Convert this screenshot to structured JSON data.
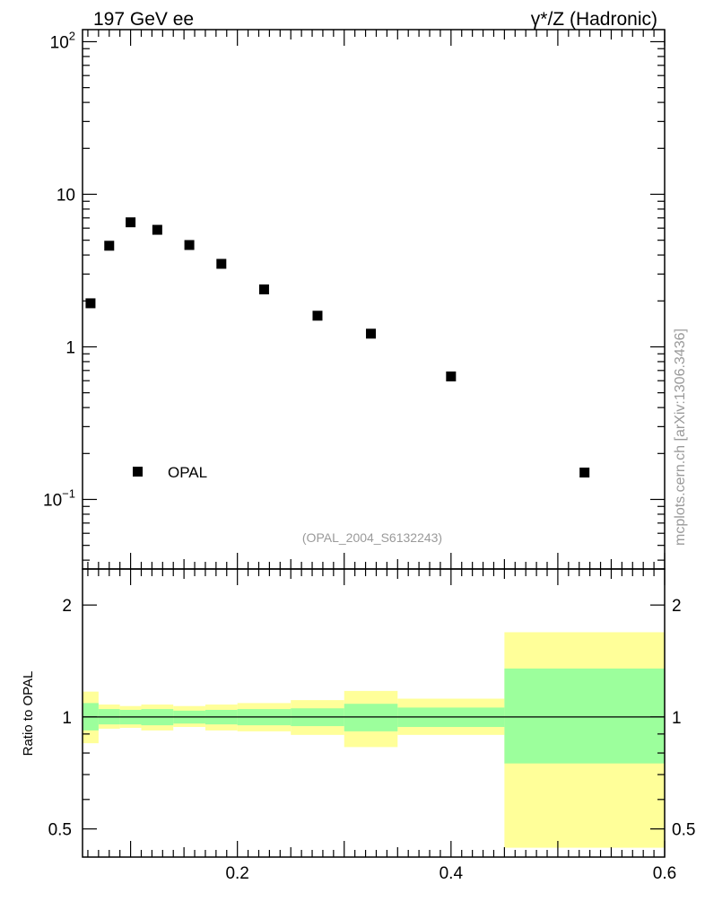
{
  "header": {
    "left": "197 GeV ee",
    "right_prefix": "γ*/Z",
    "right_suffix": " (Hadronic)"
  },
  "side_label": "mcplots.cern.ch [arXiv:1306.3436]",
  "analysis_label": "(OPAL_2004_S6132243)",
  "chart_data": [
    {
      "type": "scatter",
      "yscale": "log",
      "ylim": [
        0.035,
        120
      ],
      "xlim": [
        0.055,
        0.6
      ],
      "y_tick_labels": [
        {
          "value": 0.1,
          "base": "10",
          "exp": "−1"
        },
        {
          "value": 1,
          "text": "1"
        },
        {
          "value": 10,
          "text": "10"
        },
        {
          "value": 100,
          "base": "10",
          "exp": "2"
        }
      ],
      "legend": {
        "position": "bottom-left",
        "entry": "OPAL"
      },
      "series": [
        {
          "name": "OPAL",
          "marker": "square",
          "color": "#000000",
          "x": [
            0.0625,
            0.08,
            0.1,
            0.125,
            0.155,
            0.185,
            0.225,
            0.275,
            0.325,
            0.4,
            0.525
          ],
          "y": [
            1.93,
            4.6,
            6.55,
            5.85,
            4.65,
            3.5,
            2.38,
            1.6,
            1.22,
            0.64,
            0.15
          ]
        }
      ]
    },
    {
      "type": "area",
      "ylabel": "Ratio to OPAL",
      "ylim": [
        0.42,
        2.5
      ],
      "xlim": [
        0.055,
        0.6
      ],
      "x_tick_labels": [
        "0.2",
        "0.4",
        "0.6"
      ],
      "y_tick_labels": [
        "0.5",
        "1",
        "2"
      ],
      "reference_line": 1,
      "bins": [
        {
          "xlo": 0.055,
          "xhi": 0.07,
          "inner": [
            0.92,
            1.09
          ],
          "outer": [
            0.85,
            1.17
          ]
        },
        {
          "xlo": 0.07,
          "xhi": 0.09,
          "inner": [
            0.955,
            1.05
          ],
          "outer": [
            0.93,
            1.08
          ]
        },
        {
          "xlo": 0.09,
          "xhi": 0.11,
          "inner": [
            0.955,
            1.045
          ],
          "outer": [
            0.935,
            1.07
          ]
        },
        {
          "xlo": 0.11,
          "xhi": 0.14,
          "inner": [
            0.95,
            1.05
          ],
          "outer": [
            0.92,
            1.08
          ]
        },
        {
          "xlo": 0.14,
          "xhi": 0.17,
          "inner": [
            0.96,
            1.04
          ],
          "outer": [
            0.94,
            1.07
          ]
        },
        {
          "xlo": 0.17,
          "xhi": 0.2,
          "inner": [
            0.955,
            1.045
          ],
          "outer": [
            0.92,
            1.08
          ]
        },
        {
          "xlo": 0.2,
          "xhi": 0.25,
          "inner": [
            0.95,
            1.05
          ],
          "outer": [
            0.915,
            1.09
          ]
        },
        {
          "xlo": 0.25,
          "xhi": 0.3,
          "inner": [
            0.945,
            1.055
          ],
          "outer": [
            0.895,
            1.11
          ]
        },
        {
          "xlo": 0.3,
          "xhi": 0.35,
          "inner": [
            0.915,
            1.085
          ],
          "outer": [
            0.83,
            1.175
          ]
        },
        {
          "xlo": 0.35,
          "xhi": 0.45,
          "inner": [
            0.94,
            1.06
          ],
          "outer": [
            0.895,
            1.12
          ]
        },
        {
          "xlo": 0.45,
          "xhi": 0.6,
          "inner": [
            0.75,
            1.35
          ],
          "outer": [
            0.445,
            1.69
          ]
        }
      ],
      "colors": {
        "inner": "#9cff9c",
        "outer": "#ffff99"
      }
    }
  ]
}
